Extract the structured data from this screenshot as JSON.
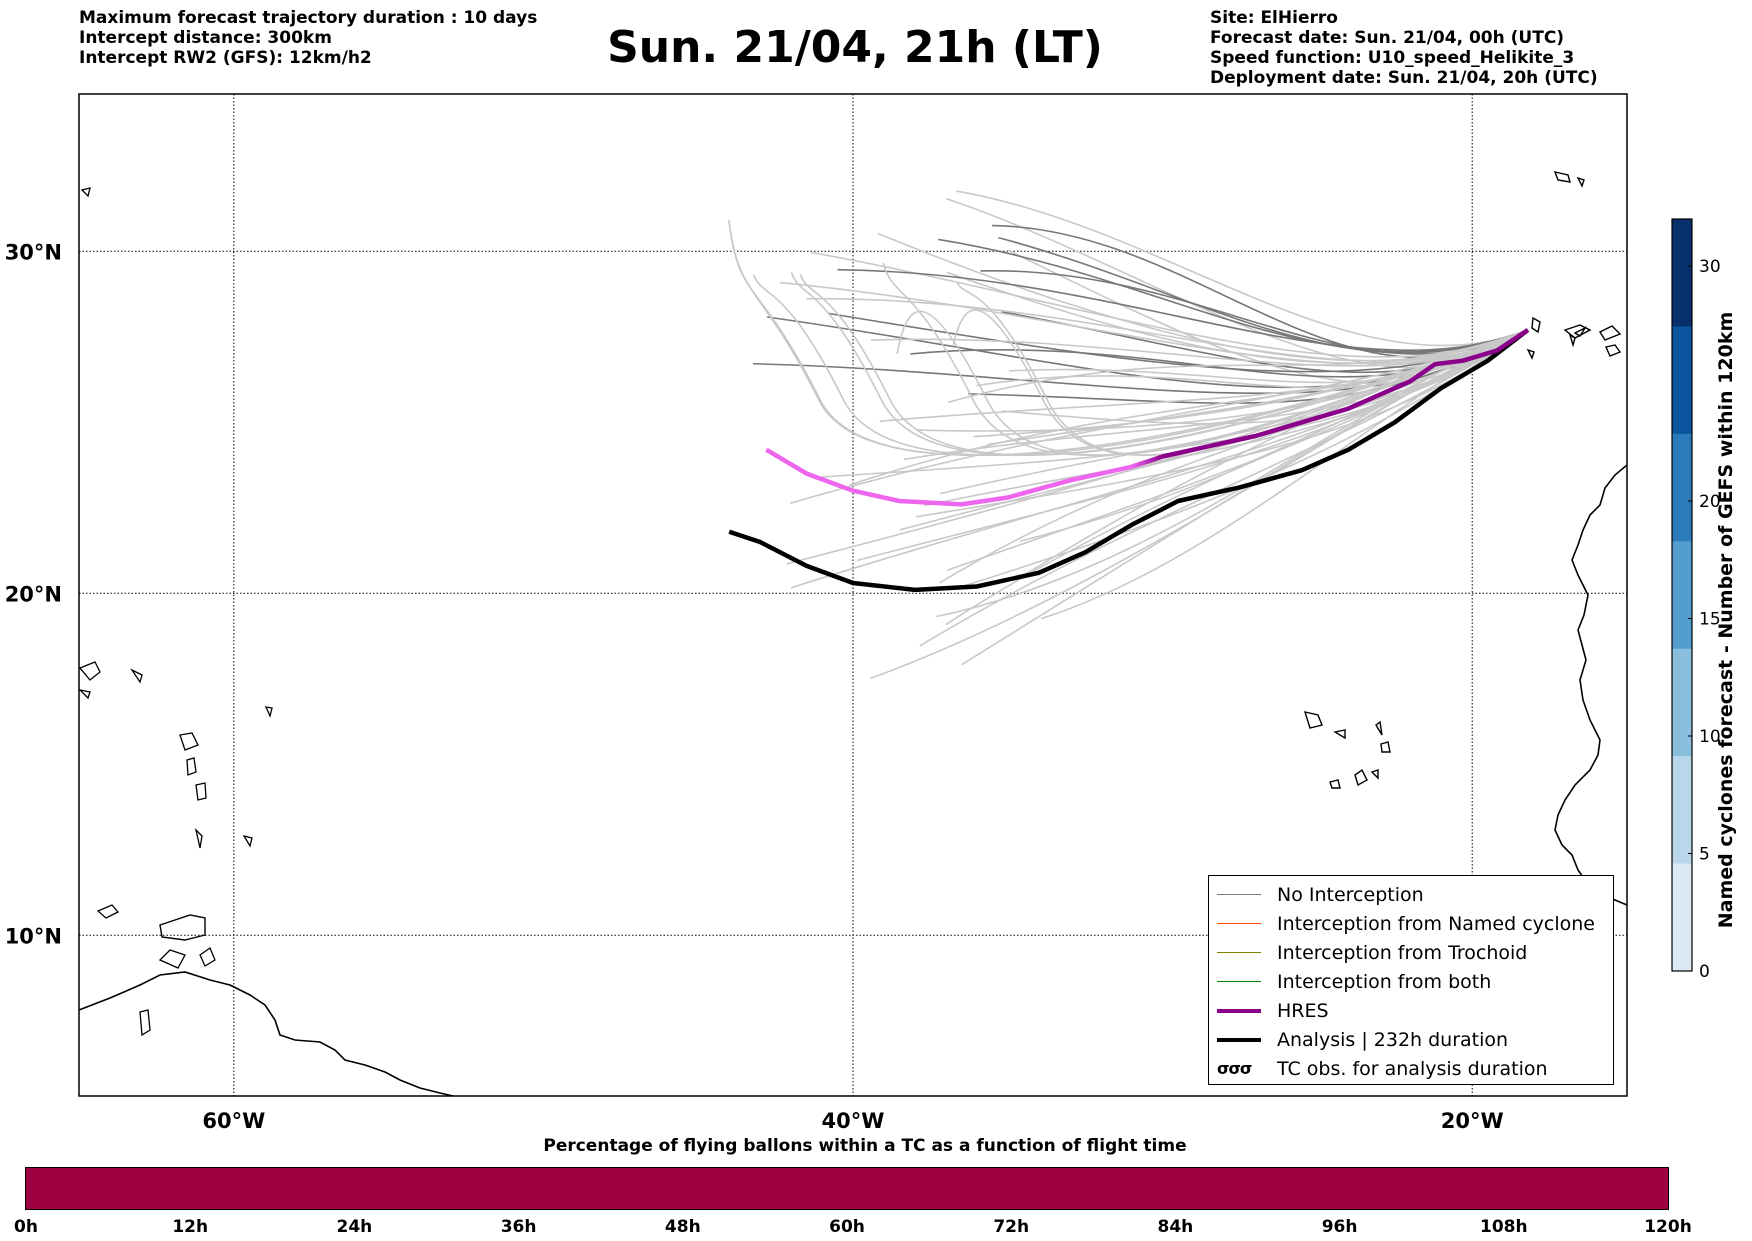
{
  "header": {
    "left_lines": [
      "Maximum forecast trajectory duration : 10 days",
      "Intercept distance: 300km",
      "Intercept RW2 (GFS):  12km/h2"
    ],
    "title": "Sun. 21/04, 21h (LT)",
    "right_lines": [
      "Site: ElHierro",
      "Forecast date: Sun. 21/04, 00h (UTC)",
      "Speed function: U10_speed_Helikite_3",
      "Deployment date: Sun. 21/04, 20h (UTC)"
    ]
  },
  "map": {
    "extent": {
      "lon": [
        -65,
        -15
      ],
      "lat": [
        5.3,
        34.6
      ]
    },
    "lon_ticks": [
      {
        "value": -60,
        "label": "60°W"
      },
      {
        "value": -40,
        "label": "40°W"
      },
      {
        "value": -20,
        "label": "20°W"
      }
    ],
    "lat_ticks": [
      {
        "value": 30,
        "label": "30°N"
      },
      {
        "value": 20,
        "label": "20°N"
      },
      {
        "value": 10,
        "label": "10°N"
      }
    ],
    "grid": true,
    "launch_site": {
      "name": "ElHierro",
      "lon": -18.2,
      "lat": 27.7
    },
    "hres_track": [
      [
        -18.2,
        27.7
      ],
      [
        -19.2,
        27.1
      ],
      [
        -20.3,
        26.8
      ],
      [
        -21.2,
        26.7
      ],
      [
        -22,
        26.2
      ],
      [
        -23,
        25.8
      ],
      [
        -24,
        25.4
      ],
      [
        -25.5,
        25
      ],
      [
        -27,
        24.6
      ],
      [
        -28.5,
        24.3
      ],
      [
        -30,
        24
      ],
      [
        -31,
        23.7
      ],
      [
        -33,
        23.3
      ],
      [
        -35,
        22.8
      ],
      [
        -36.5,
        22.6
      ],
      [
        -38.5,
        22.7
      ],
      [
        -40,
        23
      ],
      [
        -41.5,
        23.5
      ],
      [
        -42.8,
        24.2
      ]
    ],
    "hres_color_near": "#8b008b",
    "hres_color_far": "#ee66ee",
    "analysis_track": [
      [
        -18.2,
        27.7
      ],
      [
        -19.5,
        26.8
      ],
      [
        -21,
        26
      ],
      [
        -22.5,
        25
      ],
      [
        -24,
        24.2
      ],
      [
        -25.5,
        23.6
      ],
      [
        -27.5,
        23.1
      ],
      [
        -29.5,
        22.7
      ],
      [
        -31,
        22
      ],
      [
        -32.5,
        21.2
      ],
      [
        -34,
        20.6
      ],
      [
        -36,
        20.2
      ],
      [
        -38,
        20.1
      ],
      [
        -40,
        20.3
      ],
      [
        -41.5,
        20.8
      ],
      [
        -43,
        21.5
      ],
      [
        -44,
        21.8
      ]
    ],
    "analysis_color": "#000000"
  },
  "legend": {
    "items": [
      {
        "label": "No Interception",
        "color": "#7a7a7a",
        "kind": "thin"
      },
      {
        "label": "Interception from Named cyclone",
        "color": "#ff4500",
        "kind": "thin"
      },
      {
        "label": "Interception from Trochoid",
        "color": "#808000",
        "kind": "thin"
      },
      {
        "label": "Interception from both",
        "color": "#008000",
        "kind": "thin"
      },
      {
        "label": "HRES",
        "color": "#8b008b",
        "kind": "thick"
      },
      {
        "label": "Analysis | 232h duration",
        "color": "#000000",
        "kind": "thick"
      },
      {
        "label": "TC obs. for analysis duration",
        "color": "#000000",
        "kind": "tc",
        "symbol": "σσσ"
      }
    ]
  },
  "right_colorbar": {
    "title": "Named cyclones forecast - Number of GEFS within 120km",
    "ticks": [
      0,
      5,
      10,
      15,
      20,
      30
    ],
    "max": 32,
    "colors": [
      "#dbe9f6",
      "#bad6eb",
      "#89bedc",
      "#539ecd",
      "#2b7bba",
      "#0b559f",
      "#08306b"
    ]
  },
  "bottom_bar": {
    "title": "Percentage of flying ballons within a TC as a function of flight time",
    "fill_color": "#9e0142",
    "ticks": [
      "0h",
      "12h",
      "24h",
      "36h",
      "48h",
      "60h",
      "72h",
      "84h",
      "96h",
      "108h",
      "120h"
    ]
  }
}
